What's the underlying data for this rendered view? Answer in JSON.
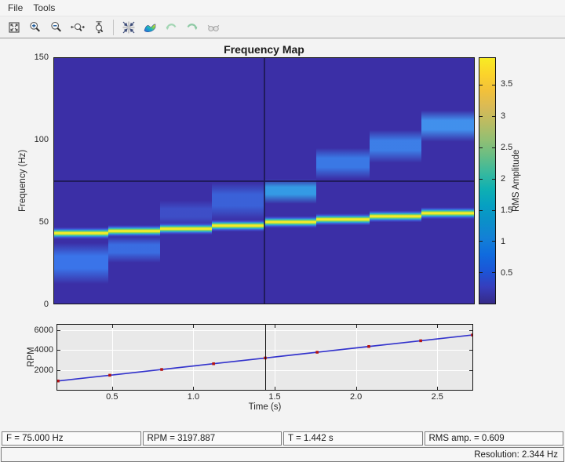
{
  "menu": {
    "items": [
      "File",
      "Tools"
    ]
  },
  "toolbar": {
    "icons": [
      "fit-view",
      "zoom-in",
      "zoom-out",
      "zoom-x",
      "zoom-y",
      "reset-view",
      "colormap-surface",
      "undo",
      "redo",
      "binoculars"
    ],
    "disabled_icons": [
      "undo",
      "redo",
      "binoculars"
    ]
  },
  "status_fields": [
    "F = 75.000 Hz",
    "RPM = 3197.887",
    "T = 1.442 s",
    "RMS amp. = 0.609"
  ],
  "statusbar": {
    "resolution": "Resolution: 2.344 Hz"
  },
  "chart_data": [
    {
      "type": "heatmap",
      "title": "Frequency Map",
      "ylabel": "Frequency (Hz)",
      "ylim": [
        0,
        150
      ],
      "xlim": [
        0.163,
        2.716
      ],
      "ytick_values": [
        0,
        50,
        100,
        150
      ],
      "ytick_labels": [
        "0",
        "50",
        "100",
        "150"
      ],
      "background_color": "#3b2fa6",
      "crosshair": {
        "t": 1.442,
        "f": 75.0
      },
      "colorbar": {
        "label": "RMS Amplitude",
        "vmin": 0,
        "vmax": 3.93,
        "tick_values": [
          0.5,
          1,
          1.5,
          2,
          2.5,
          3,
          3.5
        ],
        "tick_labels": [
          "0.5",
          "1",
          "1.5",
          "2",
          "2.5",
          "3",
          "3.5"
        ],
        "gradient_bottom_to_top": [
          "#352a87",
          "#363dbc",
          "#1b55d7",
          "#0f6bde",
          "#1380d6",
          "#0b8fc9",
          "#06a0c2",
          "#0fb0b2",
          "#38b99e",
          "#66bd85",
          "#92bf73",
          "#b8bc63",
          "#d9ba56",
          "#f2c13a",
          "#fbd32b",
          "#f8ec23"
        ]
      },
      "line_halo_colors": [
        "#3f55d8",
        "#28b7d8",
        "#8edc4e",
        "#f3ea2b"
      ],
      "segments": [
        {
          "t0": 0.163,
          "t1": 0.49,
          "order_line_hz": 43.0,
          "band_hz": [
            12,
            37
          ],
          "band_peak": "#3a7cf0",
          "band_alpha": 0.9
        },
        {
          "t0": 0.49,
          "t1": 0.805,
          "order_line_hz": 44.3,
          "band_hz": [
            25,
            41
          ],
          "band_peak": "#3a7cf0",
          "band_alpha": 0.8
        },
        {
          "t0": 0.805,
          "t1": 1.124,
          "order_line_hz": 45.7,
          "band_hz": [
            47,
            63
          ],
          "band_peak": "#3f63dd",
          "band_alpha": 0.6
        },
        {
          "t0": 1.124,
          "t1": 1.442,
          "order_line_hz": 47.6,
          "band_hz": [
            51,
            74
          ],
          "band_peak": "#3a72e8",
          "band_alpha": 0.75
        },
        {
          "t0": 1.442,
          "t1": 1.755,
          "order_line_hz": 49.8,
          "band_hz": [
            61,
            76
          ],
          "band_peak": "#34a0e8",
          "band_alpha": 0.95
        },
        {
          "t0": 1.755,
          "t1": 2.08,
          "order_line_hz": 51.4,
          "band_hz": [
            76,
            95
          ],
          "band_peak": "#3a85f0",
          "band_alpha": 0.85
        },
        {
          "t0": 2.08,
          "t1": 2.398,
          "order_line_hz": 53.3,
          "band_hz": [
            86,
            106
          ],
          "band_peak": "#3d8cf2",
          "band_alpha": 0.85
        },
        {
          "t0": 2.398,
          "t1": 2.716,
          "order_line_hz": 55.2,
          "band_hz": [
            99,
            118
          ],
          "band_peak": "#429af4",
          "band_alpha": 0.9
        }
      ]
    },
    {
      "type": "line",
      "xlabel": "Time (s)",
      "ylabel": "RPM",
      "xlim": [
        0.163,
        2.716
      ],
      "ylim": [
        0,
        6538
      ],
      "xtick_values": [
        0.5,
        1.0,
        1.5,
        2.0,
        2.5
      ],
      "xtick_labels": [
        "0.5",
        "1.0",
        "1.5",
        "2.0",
        "2.5"
      ],
      "ytick_values": [
        2000,
        4000,
        6000
      ],
      "ytick_labels": [
        "2000",
        "4000",
        "6000"
      ],
      "grid": true,
      "plot_bg": "#e9e9e9",
      "line_color": "#3333cc",
      "marker_color": "#b41414",
      "x": [
        0.168,
        0.486,
        0.805,
        1.124,
        1.442,
        1.761,
        2.079,
        2.398,
        2.716
      ],
      "y": [
        890,
        1466,
        2044,
        2622,
        3198,
        3776,
        4352,
        4930,
        5506
      ],
      "crosshair_t": 1.442
    }
  ]
}
